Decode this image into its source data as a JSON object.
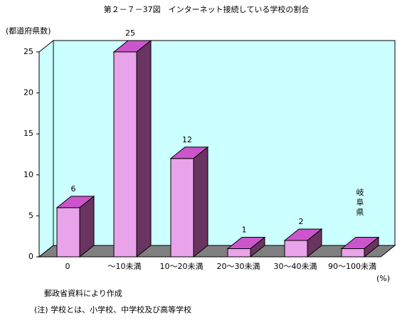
{
  "chart_data": {
    "type": "bar3d",
    "title": "第２－７－37図　インターネット接続している学校の割合",
    "y_label": "(都道府県数)",
    "x_unit_label": "(%)",
    "categories": [
      "0",
      "～10未満",
      "10～20未満",
      "20～30未満",
      "30～40未満",
      "90～100未満"
    ],
    "values": [
      6,
      25,
      12,
      1,
      2,
      1
    ],
    "value_labels": [
      "6",
      "25",
      "12",
      "1",
      "2",
      null
    ],
    "annotation": "岐阜県",
    "colors": {
      "front": "#e9a3ea",
      "top": "#cc55cc",
      "side": "#6a3460",
      "wall": "#ccffff",
      "floor": "#808080"
    },
    "ylim": [
      0,
      25
    ],
    "yticks": [
      0,
      5,
      10,
      15,
      20,
      25
    ],
    "source": "郵政省資料により作成",
    "note": "(注) 学校とは、小学校、中学校及び高等学校"
  }
}
